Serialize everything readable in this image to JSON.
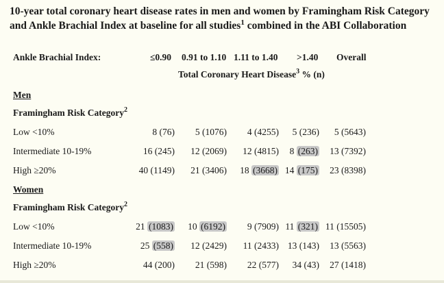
{
  "title": {
    "line1": "10-year total coronary heart disease rates in men and women by Framingham Risk Category",
    "line2_a": "and Ankle Brachial Index at baseline for all studies",
    "line2_sup": "1",
    "line2_b": " combined in the ABI Collaboration"
  },
  "header": {
    "abi_label": "Ankle Brachial Index:",
    "columns": [
      "≤0.90",
      "0.91 to 1.10",
      "1.11 to 1.40",
      ">1.40",
      "Overall"
    ],
    "subheader": "Total Coronary Heart Disease",
    "subheader_sup": "3",
    "subheader_unit": " % (n)"
  },
  "men": {
    "label": "Men",
    "category_label": "Framingham Risk Category",
    "category_sup": "2",
    "rows": [
      {
        "label": "Low <10%",
        "cells": [
          {
            "v": "8",
            "n": "(76)"
          },
          {
            "v": "5",
            "n": "(1076)"
          },
          {
            "v": "4",
            "n": "(4255)"
          },
          {
            "v": "5",
            "n": "(236)"
          },
          {
            "v": "5",
            "n": "(5643)"
          }
        ]
      },
      {
        "label": "Intermediate 10-19%",
        "cells": [
          {
            "v": "16",
            "n": "(245)"
          },
          {
            "v": "12",
            "n": "(2069)"
          },
          {
            "v": "12",
            "n": "(4815)"
          },
          {
            "v": "8",
            "n": "(263)"
          },
          {
            "v": "13",
            "n": "(7392)"
          }
        ]
      },
      {
        "label": "High ≥20%",
        "cells": [
          {
            "v": "40",
            "n": "(1149)"
          },
          {
            "v": "21",
            "n": "(3406)"
          },
          {
            "v": "18",
            "n": "(3668)"
          },
          {
            "v": "14",
            "n": "(175)"
          },
          {
            "v": "23",
            "n": "(8398)"
          }
        ]
      }
    ]
  },
  "women": {
    "label": "Women",
    "category_label": "Framingham Risk Category",
    "category_sup": "2",
    "rows": [
      {
        "label": "Low <10%",
        "cells": [
          {
            "v": "21",
            "n": "(1083)"
          },
          {
            "v": "10",
            "n": "(6192)"
          },
          {
            "v": "9",
            "n": "(7909)"
          },
          {
            "v": "11",
            "n": "(321)"
          },
          {
            "v": "11",
            "n": "(15505)"
          }
        ]
      },
      {
        "label": "Intermediate 10-19%",
        "cells": [
          {
            "v": "25",
            "n": "(558)"
          },
          {
            "v": "12",
            "n": "(2429)"
          },
          {
            "v": "11",
            "n": "(2433)"
          },
          {
            "v": "13",
            "n": "(143)"
          },
          {
            "v": "13",
            "n": "(5563)"
          }
        ]
      },
      {
        "label": "High ≥20%",
        "cells": [
          {
            "v": "44",
            "n": "(200)"
          },
          {
            "v": "21",
            "n": "(598)"
          },
          {
            "v": "22",
            "n": "(577)"
          },
          {
            "v": "34",
            "n": "(43)"
          },
          {
            "v": "27",
            "n": "(1418)"
          }
        ]
      }
    ]
  }
}
